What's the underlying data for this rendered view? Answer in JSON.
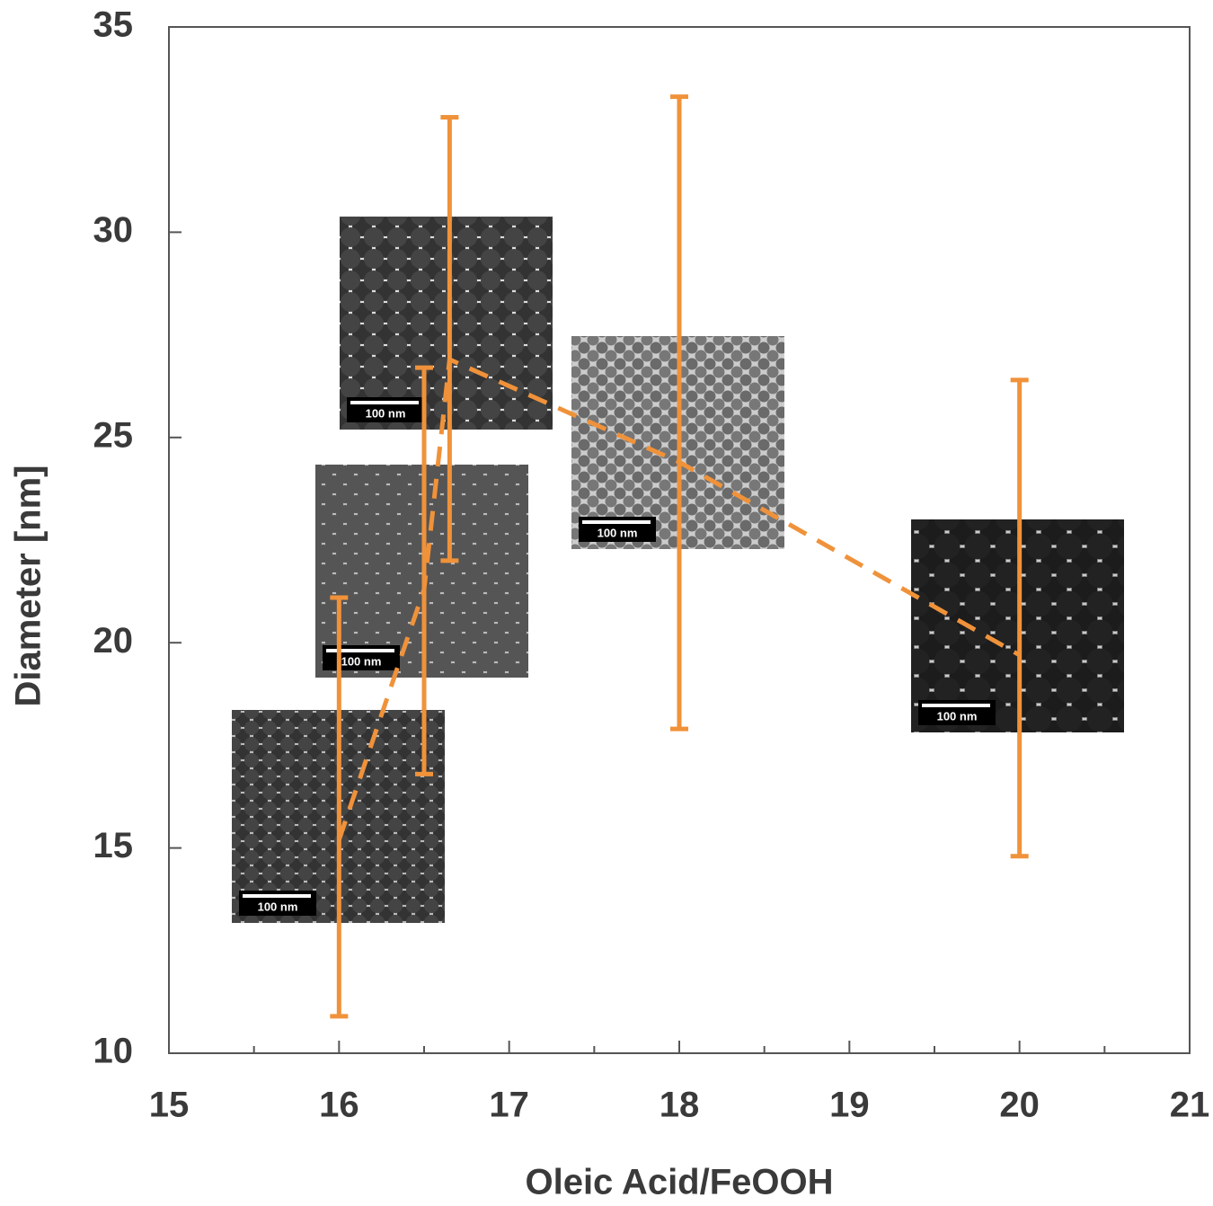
{
  "chart_data": {
    "type": "scatter",
    "xlabel": "Oleic Acid/FeOOH",
    "ylabel": "Diameter [nm]",
    "xlim": [
      15,
      21
    ],
    "xticks": [
      15,
      16,
      17,
      18,
      19,
      20,
      21
    ],
    "ylim": [
      10,
      35
    ],
    "yticks": [
      10,
      15,
      20,
      25,
      30,
      35
    ],
    "line_style": "dashed",
    "series": [
      {
        "color": "#f0923a",
        "x": [
          16,
          16.5,
          16.65,
          18,
          20
        ],
        "values": [
          15.2,
          21.3,
          26.9,
          24.4,
          19.7
        ],
        "lower": [
          10.9,
          16.8,
          22.0,
          17.9,
          14.8
        ],
        "upper": [
          21.1,
          26.7,
          32.8,
          33.3,
          26.4
        ]
      }
    ],
    "insets": [
      {
        "label": "100 nm"
      },
      {
        "label": "100 nm"
      },
      {
        "label": "100 nm"
      },
      {
        "label": "100 nm"
      },
      {
        "label": "100 nm"
      }
    ]
  }
}
